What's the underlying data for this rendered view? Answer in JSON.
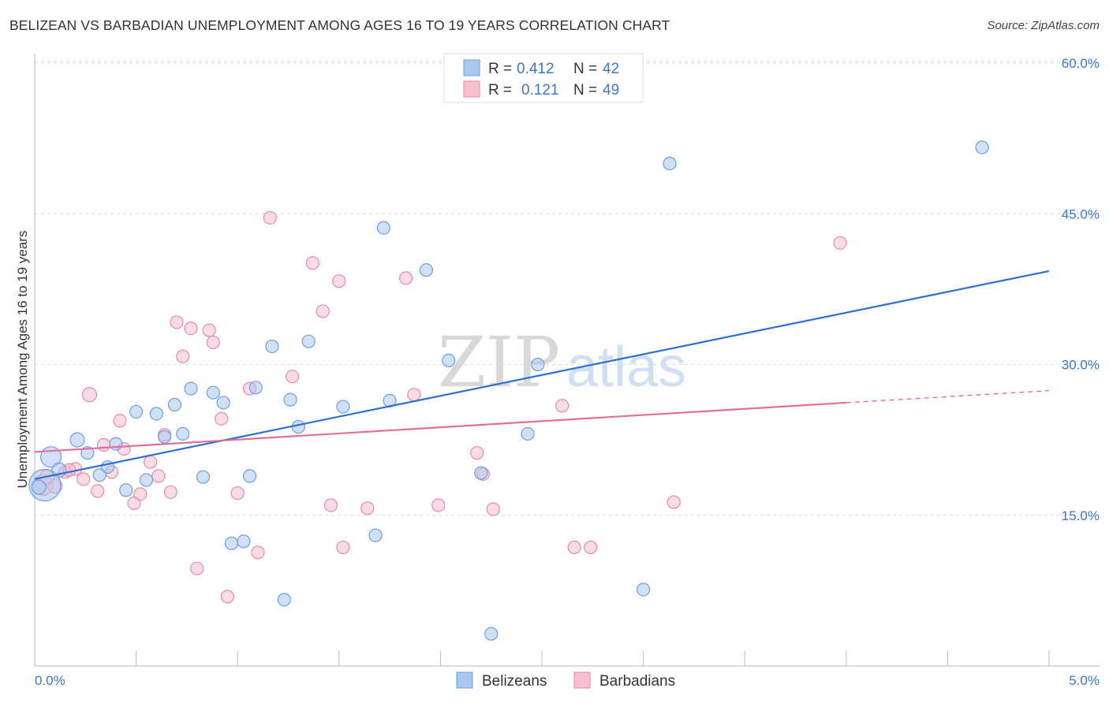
{
  "title": "BELIZEAN VS BARBADIAN UNEMPLOYMENT AMONG AGES 16 TO 19 YEARS CORRELATION CHART",
  "source": "Source: ZipAtlas.com",
  "watermark": {
    "zip": "ZIP",
    "atlas": "atlas"
  },
  "colors": {
    "blue_fill": "#a9c8f0",
    "blue_stroke": "#6d9fe0",
    "blue_line": "#2f6fd0",
    "pink_fill": "#f7c0d1",
    "pink_stroke": "#e88aa8",
    "pink_line": "#e0709a",
    "grid": "#dddddd",
    "axis_label": "#3a78c9"
  },
  "legend": [
    {
      "r_label": "R =",
      "r_value": "0.412",
      "n_label": "N =",
      "n_value": "42"
    },
    {
      "r_label": "R =",
      "r_value": "0.121",
      "n_label": "N =",
      "n_value": "49"
    }
  ],
  "bottom_legend": [
    "Belizeans",
    "Barbadians"
  ],
  "chart_data": {
    "type": "scatter",
    "xlabel": "",
    "ylabel": "Unemployment Among Ages 16 to 19 years",
    "xlim": [
      0,
      5.25
    ],
    "ylim": [
      0,
      60
    ],
    "x_tick_labels": [
      "0.0%",
      "5.0%"
    ],
    "y_tick_labels": [
      {
        "value": 15,
        "label": "15.0%"
      },
      {
        "value": 30,
        "label": "30.0%"
      },
      {
        "value": 45,
        "label": "45.0%"
      },
      {
        "value": 60,
        "label": "60.0%"
      }
    ],
    "grid": true,
    "legend_position": "top-center",
    "series": [
      {
        "name": "Belizeans",
        "color": "#a9c8f0",
        "trend": {
          "x": [
            0.0,
            5.0
          ],
          "y": [
            18.6,
            39.3
          ],
          "dashed_from": null
        },
        "points": [
          {
            "x": 0.05,
            "y": 18.0,
            "s": 20
          },
          {
            "x": 0.08,
            "y": 20.8,
            "s": 13
          },
          {
            "x": 0.12,
            "y": 19.5,
            "s": 9
          },
          {
            "x": 0.21,
            "y": 22.5,
            "s": 9
          },
          {
            "x": 0.26,
            "y": 21.2,
            "s": 8
          },
          {
            "x": 0.32,
            "y": 19.0,
            "s": 8
          },
          {
            "x": 0.36,
            "y": 19.8,
            "s": 8
          },
          {
            "x": 0.4,
            "y": 22.1,
            "s": 8
          },
          {
            "x": 0.45,
            "y": 17.5,
            "s": 8
          },
          {
            "x": 0.5,
            "y": 25.3,
            "s": 8
          },
          {
            "x": 0.55,
            "y": 18.5,
            "s": 8
          },
          {
            "x": 0.6,
            "y": 25.1,
            "s": 8
          },
          {
            "x": 0.64,
            "y": 22.8,
            "s": 8
          },
          {
            "x": 0.69,
            "y": 26.0,
            "s": 8
          },
          {
            "x": 0.73,
            "y": 23.1,
            "s": 8
          },
          {
            "x": 0.77,
            "y": 27.6,
            "s": 8
          },
          {
            "x": 0.83,
            "y": 18.8,
            "s": 8
          },
          {
            "x": 0.88,
            "y": 27.2,
            "s": 8
          },
          {
            "x": 0.93,
            "y": 26.2,
            "s": 8
          },
          {
            "x": 0.97,
            "y": 12.2,
            "s": 8
          },
          {
            "x": 1.03,
            "y": 12.4,
            "s": 8
          },
          {
            "x": 1.06,
            "y": 18.9,
            "s": 8
          },
          {
            "x": 1.09,
            "y": 27.7,
            "s": 8
          },
          {
            "x": 1.17,
            "y": 31.8,
            "s": 8
          },
          {
            "x": 1.23,
            "y": 6.6,
            "s": 8
          },
          {
            "x": 1.26,
            "y": 26.5,
            "s": 8
          },
          {
            "x": 1.3,
            "y": 23.8,
            "s": 8
          },
          {
            "x": 1.35,
            "y": 32.3,
            "s": 8
          },
          {
            "x": 1.52,
            "y": 25.8,
            "s": 8
          },
          {
            "x": 1.68,
            "y": 13.0,
            "s": 8
          },
          {
            "x": 1.72,
            "y": 43.6,
            "s": 8
          },
          {
            "x": 1.75,
            "y": 26.4,
            "s": 8
          },
          {
            "x": 1.93,
            "y": 39.4,
            "s": 8
          },
          {
            "x": 2.04,
            "y": 30.4,
            "s": 8
          },
          {
            "x": 2.2,
            "y": 19.2,
            "s": 8
          },
          {
            "x": 2.25,
            "y": 3.2,
            "s": 8
          },
          {
            "x": 2.43,
            "y": 23.1,
            "s": 8
          },
          {
            "x": 2.48,
            "y": 30.0,
            "s": 8
          },
          {
            "x": 3.0,
            "y": 7.6,
            "s": 8
          },
          {
            "x": 3.13,
            "y": 50.0,
            "s": 8
          },
          {
            "x": 4.67,
            "y": 51.6,
            "s": 8
          },
          {
            "x": 0.02,
            "y": 17.8,
            "s": 9
          }
        ]
      },
      {
        "name": "Barbadians",
        "color": "#f7c0d1",
        "trend": {
          "x": [
            0.0,
            4.0
          ],
          "y": [
            21.3,
            26.2
          ],
          "dashed_to": {
            "x": 5.0,
            "y": 27.4
          }
        },
        "points": [
          {
            "x": 0.04,
            "y": 18.0,
            "s": 13
          },
          {
            "x": 0.1,
            "y": 17.9,
            "s": 9
          },
          {
            "x": 0.15,
            "y": 19.3,
            "s": 8
          },
          {
            "x": 0.2,
            "y": 19.6,
            "s": 8
          },
          {
            "x": 0.24,
            "y": 18.6,
            "s": 8
          },
          {
            "x": 0.27,
            "y": 27.0,
            "s": 9
          },
          {
            "x": 0.31,
            "y": 17.4,
            "s": 8
          },
          {
            "x": 0.34,
            "y": 22.0,
            "s": 8
          },
          {
            "x": 0.38,
            "y": 19.3,
            "s": 8
          },
          {
            "x": 0.42,
            "y": 24.4,
            "s": 8
          },
          {
            "x": 0.44,
            "y": 21.6,
            "s": 8
          },
          {
            "x": 0.49,
            "y": 16.2,
            "s": 8
          },
          {
            "x": 0.52,
            "y": 17.1,
            "s": 8
          },
          {
            "x": 0.57,
            "y": 20.3,
            "s": 8
          },
          {
            "x": 0.61,
            "y": 18.9,
            "s": 8
          },
          {
            "x": 0.64,
            "y": 23.0,
            "s": 8
          },
          {
            "x": 0.67,
            "y": 17.3,
            "s": 8
          },
          {
            "x": 0.7,
            "y": 34.2,
            "s": 8
          },
          {
            "x": 0.73,
            "y": 30.8,
            "s": 8
          },
          {
            "x": 0.77,
            "y": 33.6,
            "s": 8
          },
          {
            "x": 0.8,
            "y": 9.7,
            "s": 8
          },
          {
            "x": 0.86,
            "y": 33.4,
            "s": 8
          },
          {
            "x": 0.88,
            "y": 32.2,
            "s": 8
          },
          {
            "x": 0.92,
            "y": 24.6,
            "s": 8
          },
          {
            "x": 0.95,
            "y": 6.9,
            "s": 8
          },
          {
            "x": 1.0,
            "y": 17.2,
            "s": 8
          },
          {
            "x": 1.06,
            "y": 27.6,
            "s": 8
          },
          {
            "x": 1.1,
            "y": 11.3,
            "s": 8
          },
          {
            "x": 1.16,
            "y": 44.6,
            "s": 8
          },
          {
            "x": 1.27,
            "y": 28.8,
            "s": 8
          },
          {
            "x": 1.37,
            "y": 40.1,
            "s": 8
          },
          {
            "x": 1.42,
            "y": 35.3,
            "s": 8
          },
          {
            "x": 1.46,
            "y": 16.0,
            "s": 8
          },
          {
            "x": 1.5,
            "y": 38.3,
            "s": 8
          },
          {
            "x": 1.52,
            "y": 11.8,
            "s": 8
          },
          {
            "x": 1.64,
            "y": 15.7,
            "s": 8
          },
          {
            "x": 1.83,
            "y": 38.6,
            "s": 8
          },
          {
            "x": 1.87,
            "y": 27.0,
            "s": 8
          },
          {
            "x": 1.99,
            "y": 16.0,
            "s": 8
          },
          {
            "x": 2.18,
            "y": 21.2,
            "s": 8
          },
          {
            "x": 2.21,
            "y": 19.1,
            "s": 8
          },
          {
            "x": 2.26,
            "y": 15.6,
            "s": 8
          },
          {
            "x": 2.6,
            "y": 25.9,
            "s": 8
          },
          {
            "x": 2.66,
            "y": 11.8,
            "s": 8
          },
          {
            "x": 2.74,
            "y": 11.8,
            "s": 8
          },
          {
            "x": 3.15,
            "y": 16.3,
            "s": 8
          },
          {
            "x": 3.97,
            "y": 42.1,
            "s": 8
          },
          {
            "x": 0.06,
            "y": 18.8,
            "s": 9
          },
          {
            "x": 0.17,
            "y": 19.5,
            "s": 8
          }
        ]
      }
    ]
  }
}
